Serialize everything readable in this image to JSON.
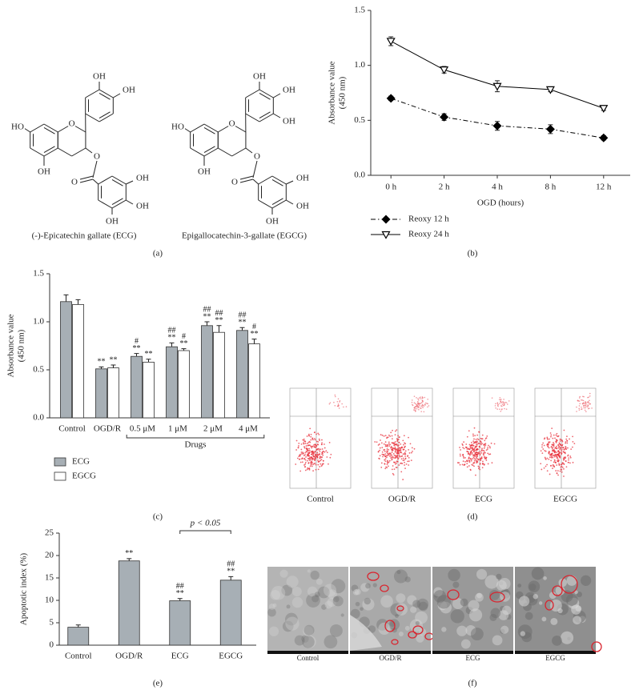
{
  "structures": [
    {
      "name": "(-)-Epicatechin gallate (ECG)",
      "atoms": [
        "OH",
        "OH",
        "HO",
        "O",
        "OH",
        "O",
        "O",
        "OH",
        "OH",
        "OH"
      ]
    },
    {
      "name": "Epigallocatechin-3-gallate (EGCG)",
      "atoms": [
        "OH",
        "OH",
        "HO",
        "O",
        "OH",
        "O",
        "O",
        "OH",
        "OH",
        "OH",
        "OH"
      ]
    }
  ],
  "chart_data": [
    {
      "type": "line",
      "xlabel": "OGD (hours)",
      "ylabel": [
        "Absorbance value",
        "(450 nm)"
      ],
      "categories": [
        "0 h",
        "2 h",
        "4 h",
        "8 h",
        "12 h"
      ],
      "ylim": [
        0,
        1.5
      ],
      "yticks": [
        {
          "value": 0,
          "label": "0.0"
        },
        {
          "value": 0.5,
          "label": "0.5"
        },
        {
          "value": 1,
          "label": "1.0"
        },
        {
          "value": 1.5,
          "label": "1.5"
        }
      ],
      "grid": false,
      "series": [
        {
          "name": "Reoxy 12 h",
          "color": "#000000",
          "marker": "diamond",
          "line_style": "dashdot",
          "values": [
            0.7,
            0.53,
            0.45,
            0.42,
            0.34
          ],
          "errors": [
            0.02,
            0.03,
            0.04,
            0.04,
            0.02
          ]
        },
        {
          "name": "Reoxy 24 h",
          "color": "#000000",
          "marker": "triangle-down",
          "line_style": "solid",
          "values": [
            1.22,
            0.96,
            0.81,
            0.78,
            0.61
          ],
          "errors": [
            0.04,
            0.03,
            0.05,
            0.02,
            0.02
          ]
        }
      ]
    },
    {
      "type": "bar",
      "ylabel": [
        "Absorbance value",
        "(450 nm)"
      ],
      "categories": [
        "Control",
        "OGD/R",
        "0.5 μM",
        "1 μM",
        "2 μM",
        "4 μM"
      ],
      "category_groups": [
        {
          "label": "Drugs",
          "categories": [
            "0.5 μM",
            "1 μM",
            "2 μM",
            "4 μM"
          ]
        }
      ],
      "ylim": [
        0,
        1.5
      ],
      "yticks": [
        {
          "value": 0,
          "label": "0.0"
        },
        {
          "value": 0.5,
          "label": "0.5"
        },
        {
          "value": 1,
          "label": "1.0"
        },
        {
          "value": 1.5,
          "label": "1.5"
        }
      ],
      "grid": false,
      "series": [
        {
          "name": "ECG",
          "color": "#a7afb5",
          "values": [
            1.21,
            0.51,
            0.64,
            0.74,
            0.96,
            0.91
          ],
          "errors": [
            0.07,
            0.02,
            0.03,
            0.04,
            0.04,
            0.03
          ],
          "annotations": [
            [],
            [
              "**"
            ],
            [
              "#",
              "**"
            ],
            [
              "##",
              "**"
            ],
            [
              "##",
              "**"
            ],
            [
              "##",
              "**"
            ]
          ]
        },
        {
          "name": "EGCG",
          "color": "#ffffff",
          "values": [
            1.18,
            0.52,
            0.58,
            0.7,
            0.89,
            0.77
          ],
          "errors": [
            0.05,
            0.03,
            0.03,
            0.02,
            0.07,
            0.05
          ],
          "annotations": [
            [],
            [
              "**"
            ],
            [
              "**"
            ],
            [
              "#",
              "**"
            ],
            [
              "##",
              "**"
            ],
            [
              "#",
              "**"
            ]
          ]
        }
      ]
    },
    {
      "type": "bar",
      "ylabel": [
        "Apoptotic index (%)"
      ],
      "categories": [
        "Control",
        "OGD/R",
        "ECG",
        "EGCG"
      ],
      "ylim": [
        0,
        25
      ],
      "yticks": [
        0,
        5,
        10,
        15,
        20,
        25
      ],
      "grid": false,
      "comparisons": [
        {
          "label": "p < 0.05",
          "between": [
            "ECG",
            "EGCG"
          ]
        }
      ],
      "series": [
        {
          "name": "Apoptotic index",
          "color": "#a7afb5",
          "values": [
            4.0,
            18.8,
            9.9,
            14.5
          ],
          "errors": [
            0.5,
            0.5,
            0.5,
            0.8
          ],
          "annotations": [
            [],
            [
              "**"
            ],
            [
              "##",
              "**"
            ],
            [
              "##",
              "**"
            ]
          ]
        }
      ]
    }
  ],
  "cytometry": {
    "panels": [
      "Control",
      "OGD/R",
      "ECG",
      "EGCG"
    ]
  },
  "micrographs": {
    "panels": [
      "Control",
      "OGD/R",
      "ECG",
      "EGCG"
    ]
  },
  "captions": [
    "(a)",
    "(b)",
    "(c)",
    "(d)",
    "(e)",
    "(f)"
  ]
}
